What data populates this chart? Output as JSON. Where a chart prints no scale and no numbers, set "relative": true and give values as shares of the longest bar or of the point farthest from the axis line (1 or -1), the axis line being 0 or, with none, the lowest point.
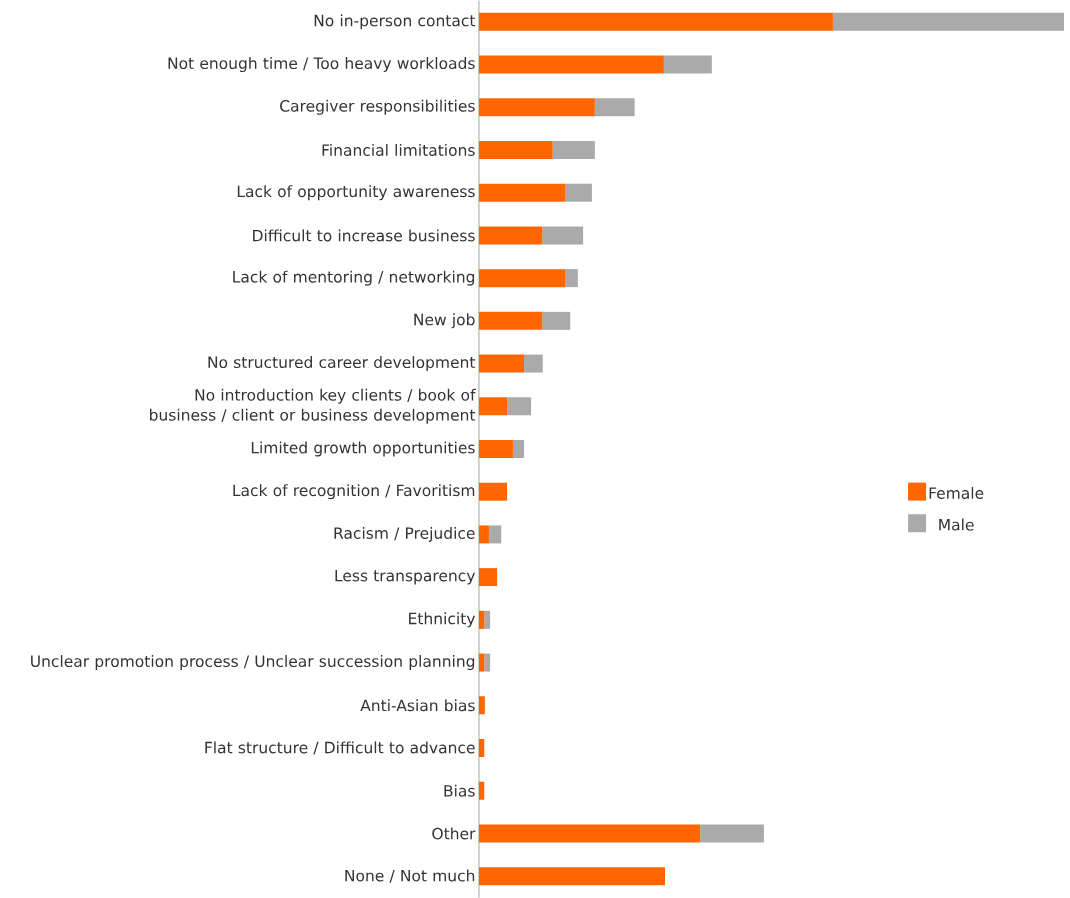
{
  "chart_data": {
    "type": "bar",
    "orientation": "horizontal",
    "stacked": true,
    "relative": true,
    "legend": "right",
    "categories": [
      "No in-person contact",
      "Not enough time / Too heavy workloads",
      "Caregiver responsibilities",
      "Financial limitations",
      "Lack of opportunity awareness",
      "Difficult to increase business",
      "Lack of mentoring / networking",
      "New job",
      "No structured career development",
      "No introduction key clients / book of business / client or business development",
      "Limited growth opportunities",
      "Lack of recognition / Favoritism",
      "Racism / Prejudice",
      "Less transparency",
      "Ethnicity",
      "Unclear promotion process / Unclear succession planning",
      "Anti-Asian bias",
      "Flat structure / Difficult to advance",
      "Bias",
      "Other",
      "None / Not much"
    ],
    "series": [
      {
        "name": "Female",
        "color": "#ff6600",
        "values": [
          0.605,
          0.316,
          0.198,
          0.126,
          0.147,
          0.108,
          0.147,
          0.108,
          0.077,
          0.048,
          0.058,
          0.048,
          0.017,
          0.031,
          0.009,
          0.009,
          0.01,
          0.009,
          0.009,
          0.378,
          0.318
        ]
      },
      {
        "name": "Male",
        "color": "#aaaaaa",
        "values": [
          0.395,
          0.082,
          0.068,
          0.072,
          0.046,
          0.07,
          0.022,
          0.048,
          0.032,
          0.041,
          0.019,
          0,
          0.021,
          0,
          0.01,
          0.01,
          0,
          0,
          0,
          0.109,
          0
        ]
      }
    ]
  }
}
